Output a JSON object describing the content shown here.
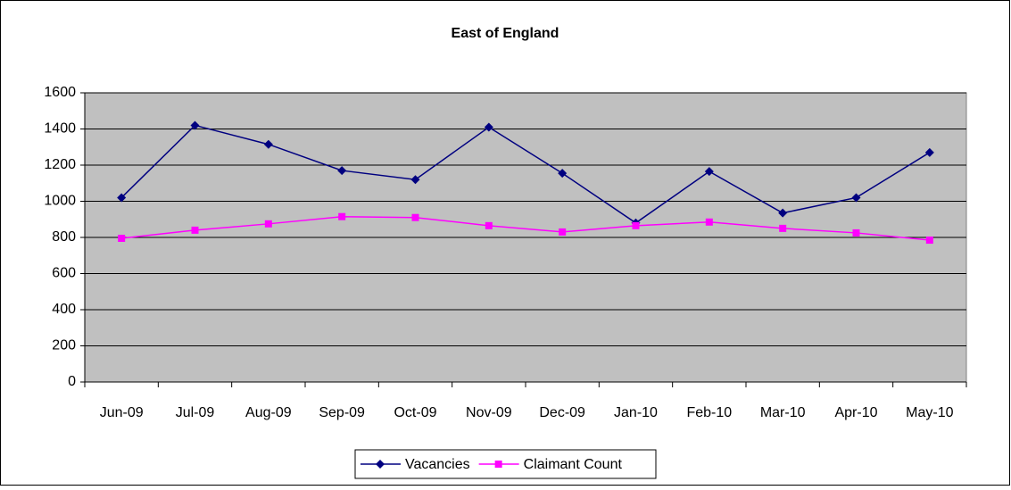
{
  "chart_data": {
    "type": "line",
    "title": "East of England",
    "categories": [
      "Jun-09",
      "Jul-09",
      "Aug-09",
      "Sep-09",
      "Oct-09",
      "Nov-09",
      "Dec-09",
      "Jan-10",
      "Feb-10",
      "Mar-10",
      "Apr-10",
      "May-10"
    ],
    "series": [
      {
        "name": "Vacancies",
        "color": "#000080",
        "marker": "diamond",
        "values": [
          1020,
          1420,
          1315,
          1170,
          1120,
          1410,
          1155,
          880,
          1165,
          935,
          1020,
          1270
        ]
      },
      {
        "name": "Claimant Count",
        "color": "#ff00ff",
        "marker": "square",
        "values": [
          795,
          840,
          875,
          915,
          910,
          865,
          830,
          865,
          885,
          850,
          825,
          785
        ]
      }
    ],
    "ylim": [
      0,
      1600
    ],
    "yticks": [
      0,
      200,
      400,
      600,
      800,
      1000,
      1200,
      1400,
      1600
    ],
    "grid": true,
    "legend": "bottom"
  }
}
